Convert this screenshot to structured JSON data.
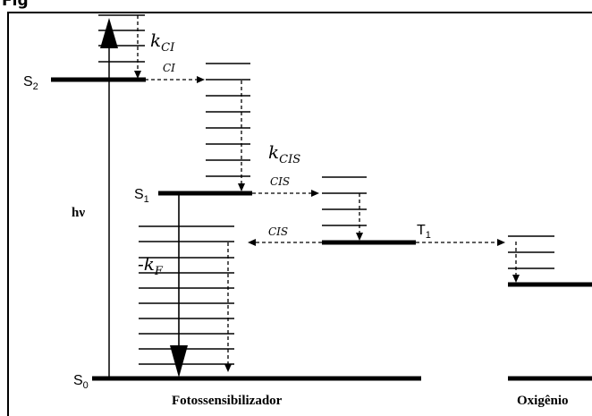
{
  "title": "Fig",
  "states": {
    "s2": {
      "main": "S",
      "sub": "2"
    },
    "s1": {
      "main": "S",
      "sub": "1"
    },
    "s0": {
      "main": "S",
      "sub": "0"
    },
    "t1": {
      "main": "T",
      "sub": "1"
    }
  },
  "rates": {
    "kci": {
      "main": "k",
      "sub": "CI"
    },
    "kcis": {
      "main": "k",
      "sub": "CIS"
    },
    "kf": {
      "prefix": "-",
      "main": "k",
      "sub": "F"
    }
  },
  "transitions": {
    "ci": "CI",
    "cis_upper": "CIS",
    "cis_lower": "CIS"
  },
  "excitation": "hν",
  "footer": {
    "photosensitizer": "Fotossensibilizador",
    "oxygen": "Oxigênio"
  }
}
